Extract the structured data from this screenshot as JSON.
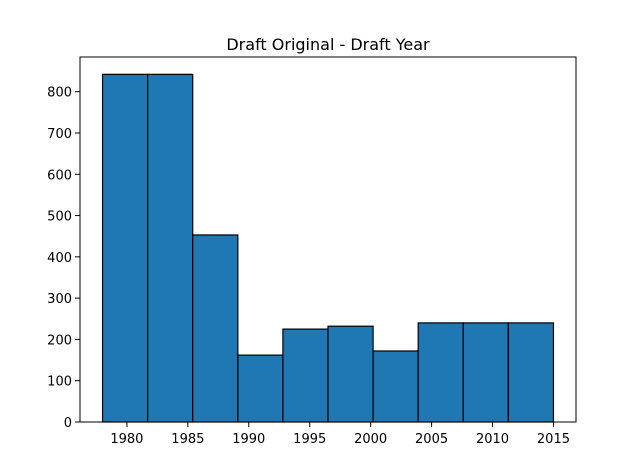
{
  "chart_data": {
    "type": "bar",
    "title": "Draft Original - Draft Year",
    "xlabel": "",
    "ylabel": "",
    "histogram": true,
    "bin_edges": [
      1978,
      1981.7,
      1985.4,
      1989.1,
      1992.8,
      1996.5,
      2000.2,
      2003.9,
      2007.6,
      2011.3,
      2015
    ],
    "values": [
      842,
      842,
      453,
      162,
      225,
      232,
      172,
      240,
      240,
      240
    ],
    "xlim": [
      1976.15,
      2016.85
    ],
    "ylim": [
      0,
      884
    ],
    "xticks": [
      1980,
      1985,
      1990,
      1995,
      2000,
      2005,
      2010,
      2015
    ],
    "yticks": [
      0,
      100,
      200,
      300,
      400,
      500,
      600,
      700,
      800
    ],
    "grid": false,
    "legend": "none",
    "bar_color": "#1f77b4",
    "edge_color": "#000000"
  }
}
